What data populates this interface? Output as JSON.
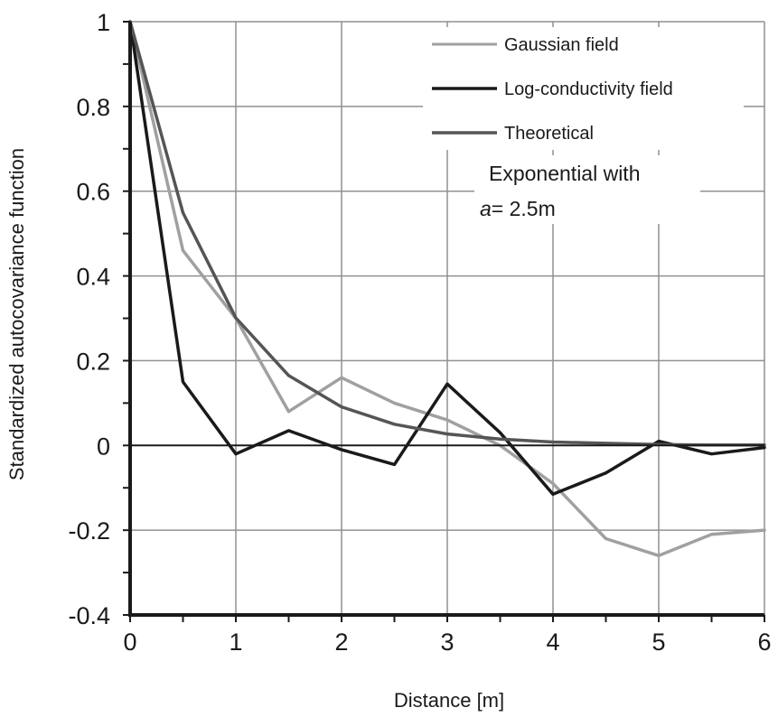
{
  "chart_data": {
    "type": "line",
    "title": "",
    "xlabel": "Distance [m]",
    "ylabel": "Standardized autocovariance function",
    "xlim": [
      0,
      6
    ],
    "ylim": [
      -0.4,
      1
    ],
    "x_ticks": [
      "0",
      "1",
      "2",
      "3",
      "4",
      "5",
      "6"
    ],
    "y_ticks": [
      "-0.4",
      "-0.2",
      "0",
      "0.2",
      "0.4",
      "0.6",
      "0.8",
      "1"
    ],
    "grid": true,
    "legend_position": "top-right",
    "annotation": {
      "line1": "Exponential with",
      "var": "a",
      "rest": "= 2.5m"
    },
    "series": [
      {
        "name": "Gaussian field",
        "color": "#a0a0a0",
        "x": [
          0,
          0.5,
          1,
          1.5,
          2,
          2.5,
          3,
          3.5,
          4,
          4.5,
          5,
          5.5,
          6
        ],
        "y": [
          1,
          0.46,
          0.3,
          0.08,
          0.16,
          0.1,
          0.06,
          0.0,
          -0.09,
          -0.22,
          -0.26,
          -0.21,
          -0.2
        ]
      },
      {
        "name": "Log-conductivity field",
        "color": "#1a1a1a",
        "x": [
          0,
          0.5,
          1,
          1.5,
          2,
          2.5,
          3,
          3.5,
          4,
          4.5,
          5,
          5.5,
          6
        ],
        "y": [
          1,
          0.15,
          -0.02,
          0.035,
          -0.01,
          -0.045,
          0.145,
          0.03,
          -0.115,
          -0.065,
          0.01,
          -0.02,
          -0.005
        ]
      },
      {
        "name": "Theoretical",
        "color": "#555555",
        "x": [
          0,
          0.5,
          1,
          1.5,
          2,
          2.5,
          3,
          3.5,
          4,
          4.5,
          5,
          5.5,
          6
        ],
        "y": [
          1,
          0.549,
          0.301,
          0.165,
          0.091,
          0.05,
          0.027,
          0.015,
          0.008,
          0.005,
          0.002,
          0.001,
          0.001
        ]
      }
    ]
  }
}
